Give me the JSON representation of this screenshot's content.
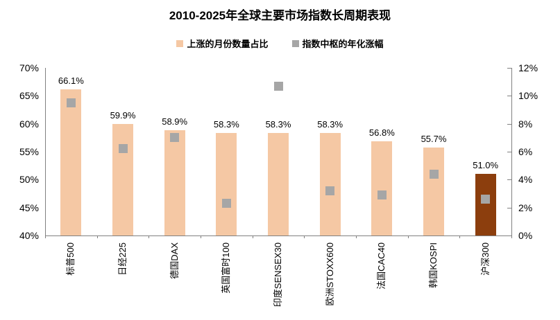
{
  "title": "2010-2025年全球主要市场指数长周期表现",
  "legend": [
    {
      "label": "上涨的月份数量占比",
      "color": "#F5C8A4"
    },
    {
      "label": "指数中枢的年化涨幅",
      "color": "#A6A6A6"
    }
  ],
  "chart_data": {
    "type": "bar",
    "title": "2010-2025年全球主要市场指数长周期表现",
    "categories": [
      "标普500",
      "日经225",
      "德国DAX",
      "英国富时100",
      "印度SENSEX30",
      "欧洲STOXX600",
      "法国CAC40",
      "韩国KOSPI",
      "沪深300"
    ],
    "series": [
      {
        "name": "上涨的月份数量占比",
        "type": "bar",
        "axis": "left",
        "values": [
          66.1,
          59.9,
          58.9,
          58.3,
          58.3,
          58.3,
          56.8,
          55.7,
          51.0
        ],
        "data_labels": [
          "66.1%",
          "59.9%",
          "58.9%",
          "58.3%",
          "58.3%",
          "58.3%",
          "56.8%",
          "55.7%",
          "51.0%"
        ]
      },
      {
        "name": "指数中枢的年化涨幅",
        "type": "scatter",
        "marker": "square",
        "axis": "right",
        "values": [
          9.5,
          6.2,
          7.0,
          2.3,
          10.7,
          3.2,
          2.9,
          4.4,
          2.6
        ]
      }
    ],
    "left_axis": {
      "min": 40,
      "max": 70,
      "step": 5,
      "tick_labels": [
        "70%",
        "65%",
        "60%",
        "55%",
        "50%",
        "45%",
        "40%"
      ]
    },
    "right_axis": {
      "min": 0,
      "max": 12,
      "step": 2,
      "tick_labels": [
        "12%",
        "10%",
        "8%",
        "6%",
        "4%",
        "2%",
        "0%"
      ]
    },
    "grid": false,
    "legend_position": "top",
    "bar_color": "#F5C8A4",
    "highlight_bar": {
      "index": 8,
      "color": "#8C3E0D"
    },
    "marker_color": "#A6A6A6",
    "axis_color": "#808080"
  }
}
